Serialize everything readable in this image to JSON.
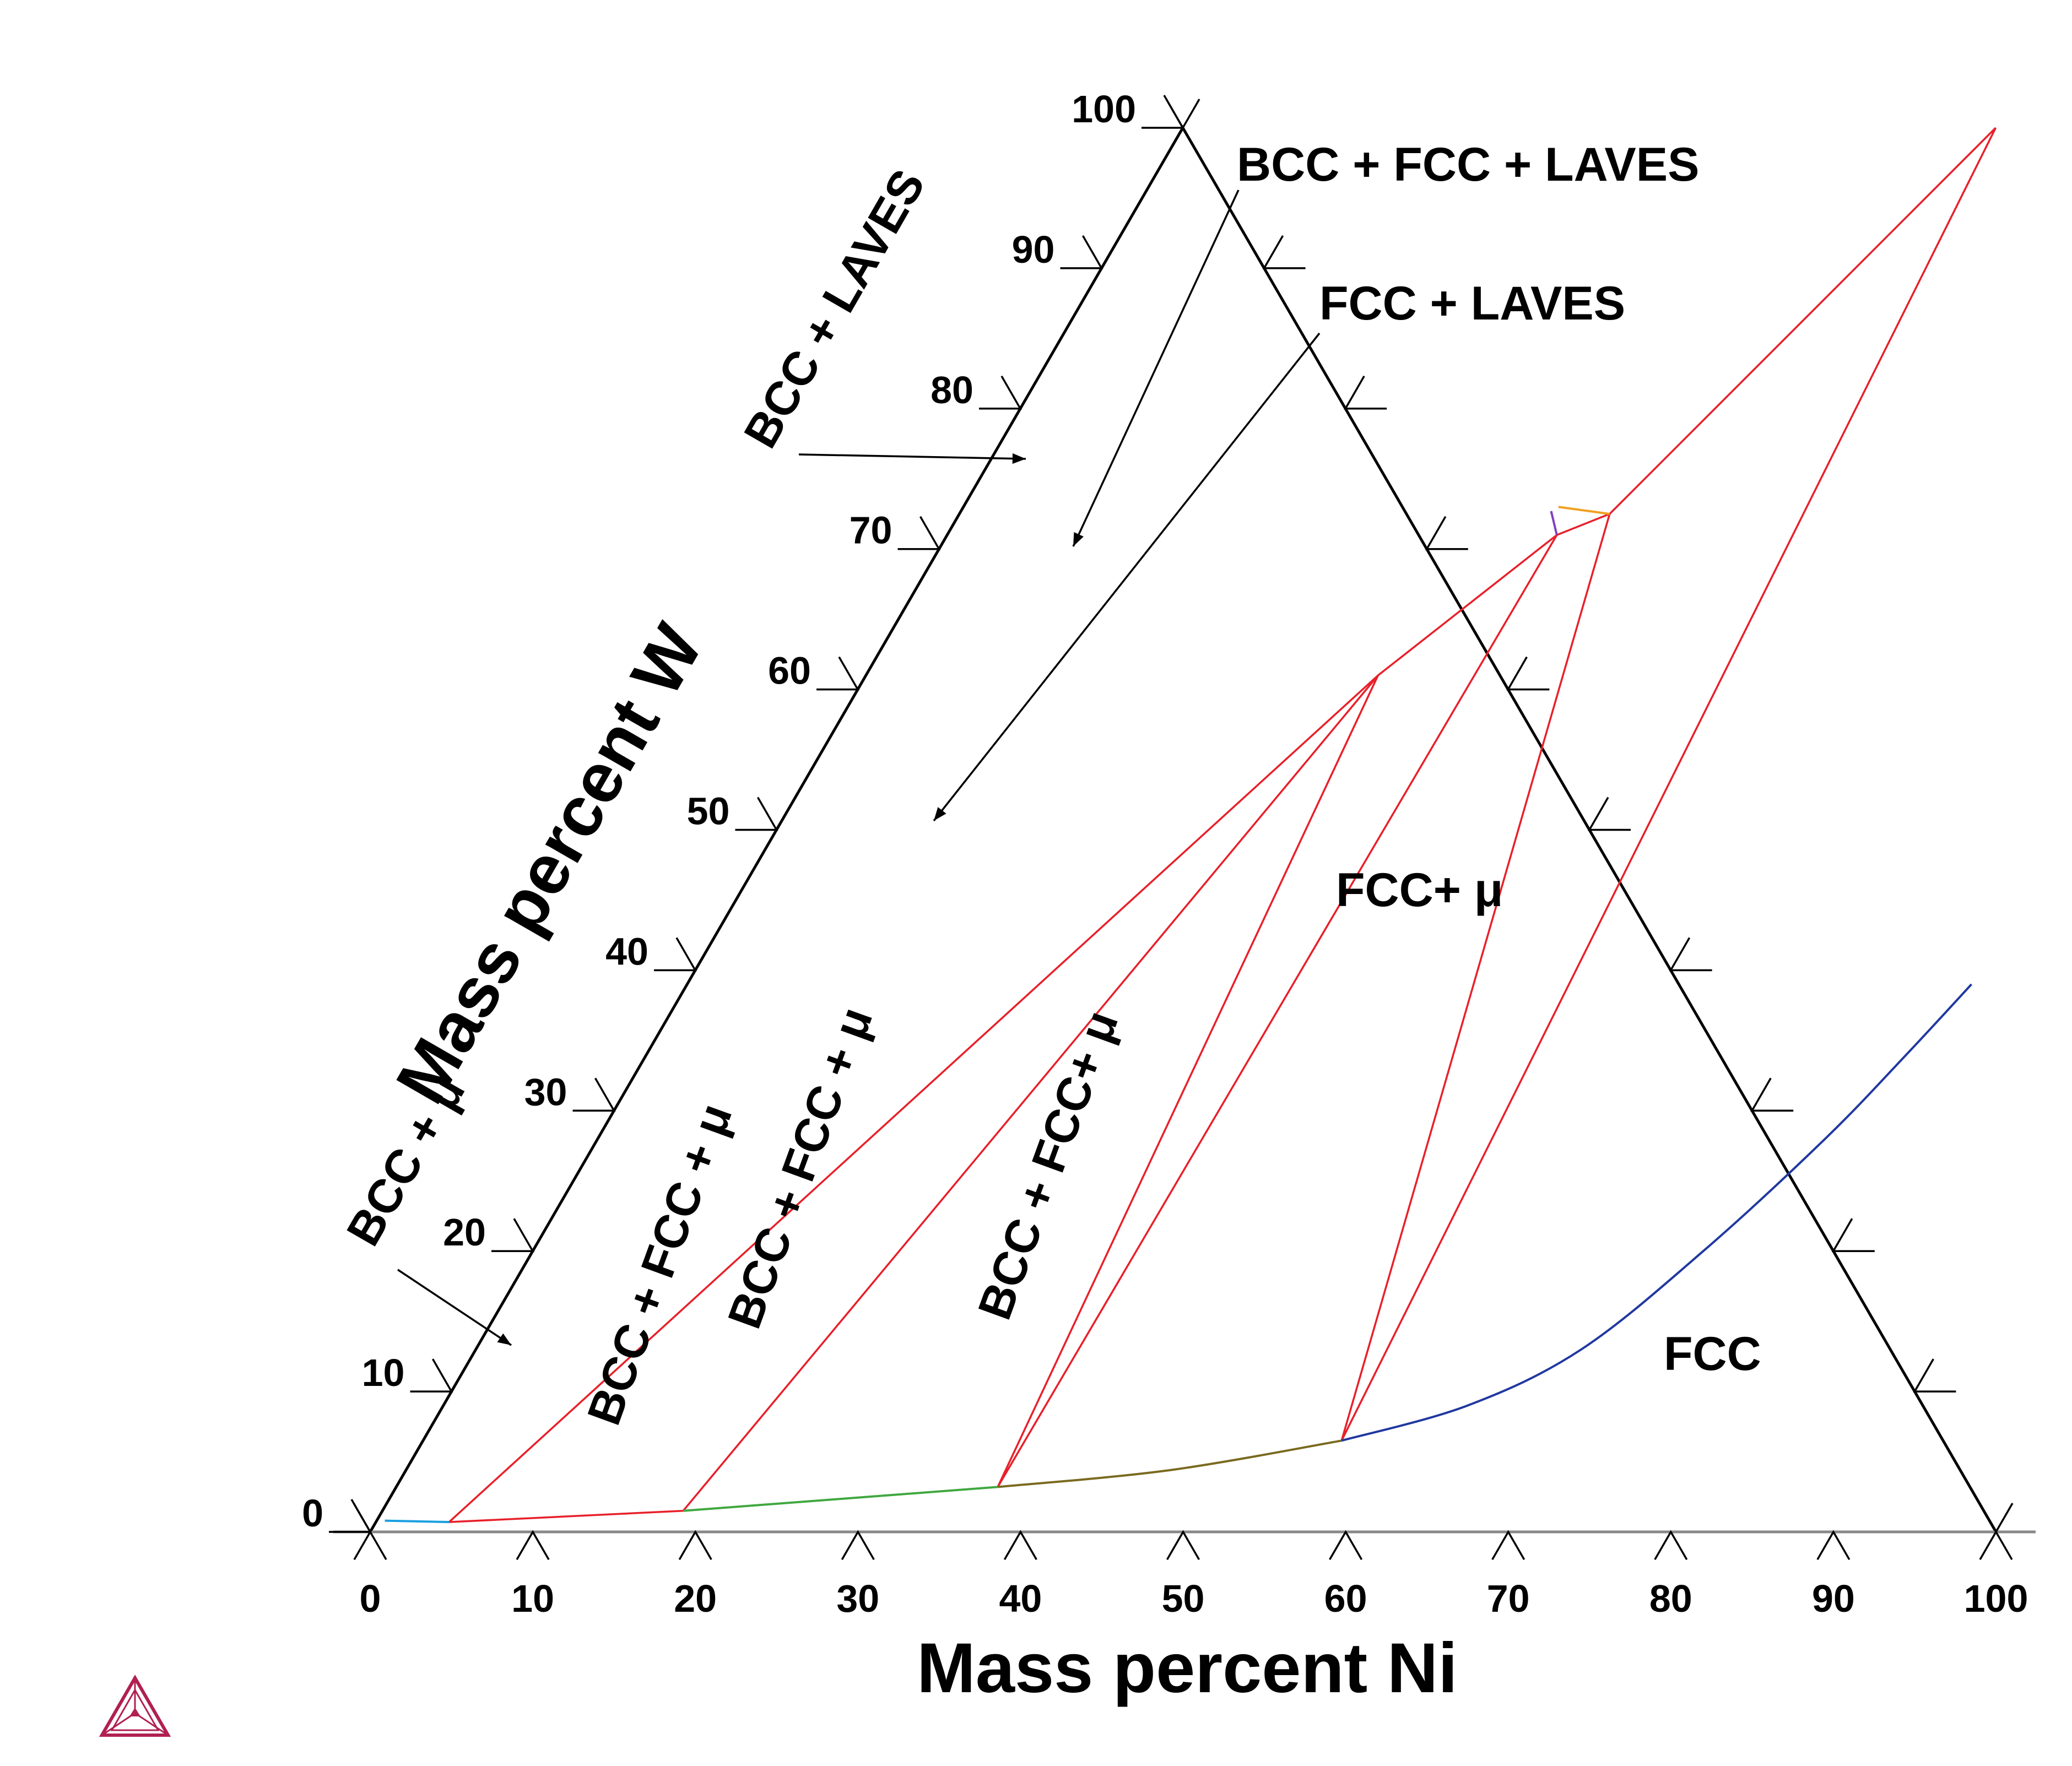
{
  "chart_data": {
    "type": "ternary",
    "title": "",
    "xlabel": "Mass percent Ni",
    "ylabel": "Mass percent W",
    "axis_range": [
      0,
      100
    ],
    "bottom_ticks": [
      "0",
      "10",
      "20",
      "30",
      "40",
      "50",
      "60",
      "70",
      "80",
      "90",
      "100"
    ],
    "left_ticks": [
      "0",
      "10",
      "20",
      "30",
      "40",
      "50",
      "60",
      "70",
      "80",
      "90",
      "100"
    ],
    "regions": {
      "bcc_laves": "BCC + LAVES",
      "bcc_fcc_laves": "BCC + FCC + LAVES",
      "fcc_laves": "FCC + LAVES",
      "fcc_mu": "FCC+ μ",
      "fcc": "FCC",
      "bcc_mu": "BCC + μ",
      "bcc_fcc_mu_1": "BCC + FCC + μ",
      "bcc_fcc_mu_2": "BCC + FCC + μ",
      "bcc_fcc_mu_3": "BCC + FCC+ μ"
    },
    "tie_lines": [
      {
        "name": "bcc-mu-left",
        "from": {
          "ni": 4.5,
          "w": 0.7
        },
        "to": {
          "ni": 31.5,
          "w": 61.0
        }
      },
      {
        "name": "bcc-mu-right",
        "from": {
          "ni": 18.5,
          "w": 1.5
        },
        "to": {
          "ni": 31.5,
          "w": 61.0
        }
      },
      {
        "name": "tri-2-left",
        "from": {
          "ni": 31.5,
          "w": 61.0
        },
        "to": {
          "ni": 37.0,
          "w": 3.2
        }
      },
      {
        "name": "tri-3-left",
        "from": {
          "ni": 37.0,
          "w": 3.2
        },
        "to": {
          "ni": 37.5,
          "w": 71.0
        }
      },
      {
        "name": "mu-left",
        "from": {
          "ni": 31.5,
          "w": 61.0
        },
        "to": {
          "ni": 37.5,
          "w": 71.0
        }
      },
      {
        "name": "mu-top",
        "from": {
          "ni": 37.5,
          "w": 71.0
        },
        "to": {
          "ni": 40.0,
          "w": 72.5
        }
      },
      {
        "name": "tri-3-right",
        "from": {
          "ni": 56.5,
          "w": 6.5
        },
        "to": {
          "ni": 40.0,
          "w": 72.5
        }
      },
      {
        "name": "laves-left",
        "from": {
          "ni": 40.0,
          "w": 72.5
        },
        "to": {
          "ni": 50.0,
          "w": 100.0
        }
      },
      {
        "name": "fcc-laves",
        "from": {
          "ni": 56.5,
          "w": 6.5
        },
        "to": {
          "ni": 50.0,
          "w": 100.0
        }
      },
      {
        "name": "bcc-bottom",
        "from": {
          "ni": 4.5,
          "w": 0.7
        },
        "to": {
          "ni": 18.5,
          "w": 1.5
        }
      }
    ],
    "bcc_boundary": [
      {
        "ni": 0.5,
        "w": 0.8
      },
      {
        "ni": 4.5,
        "w": 0.7
      }
    ],
    "laves_boundary": [
      {
        "ni": 36.6,
        "w": 73.0
      },
      {
        "ni": 40.0,
        "w": 72.5
      }
    ],
    "mu_boundary": [
      {
        "ni": 36.3,
        "w": 72.7
      },
      {
        "ni": 37.5,
        "w": 71.0
      }
    ],
    "fcc_boundary_green": [
      {
        "ni": 18.5,
        "w": 1.5
      },
      {
        "ni": 37.0,
        "w": 3.2
      }
    ],
    "fcc_boundary_olive": [
      {
        "ni": 37.0,
        "w": 3.2
      },
      {
        "ni": 47.0,
        "w": 4.4
      },
      {
        "ni": 56.5,
        "w": 6.5
      }
    ],
    "fcc_boundary_blue": [
      {
        "ni": 56.5,
        "w": 6.5
      },
      {
        "ni": 63.0,
        "w": 9.0
      },
      {
        "ni": 68.0,
        "w": 13.0
      },
      {
        "ni": 72.0,
        "w": 20.0
      },
      {
        "ni": 75.5,
        "w": 28.0
      },
      {
        "ni": 77.5,
        "w": 34.0
      },
      {
        "ni": 79.0,
        "w": 39.0
      }
    ]
  }
}
